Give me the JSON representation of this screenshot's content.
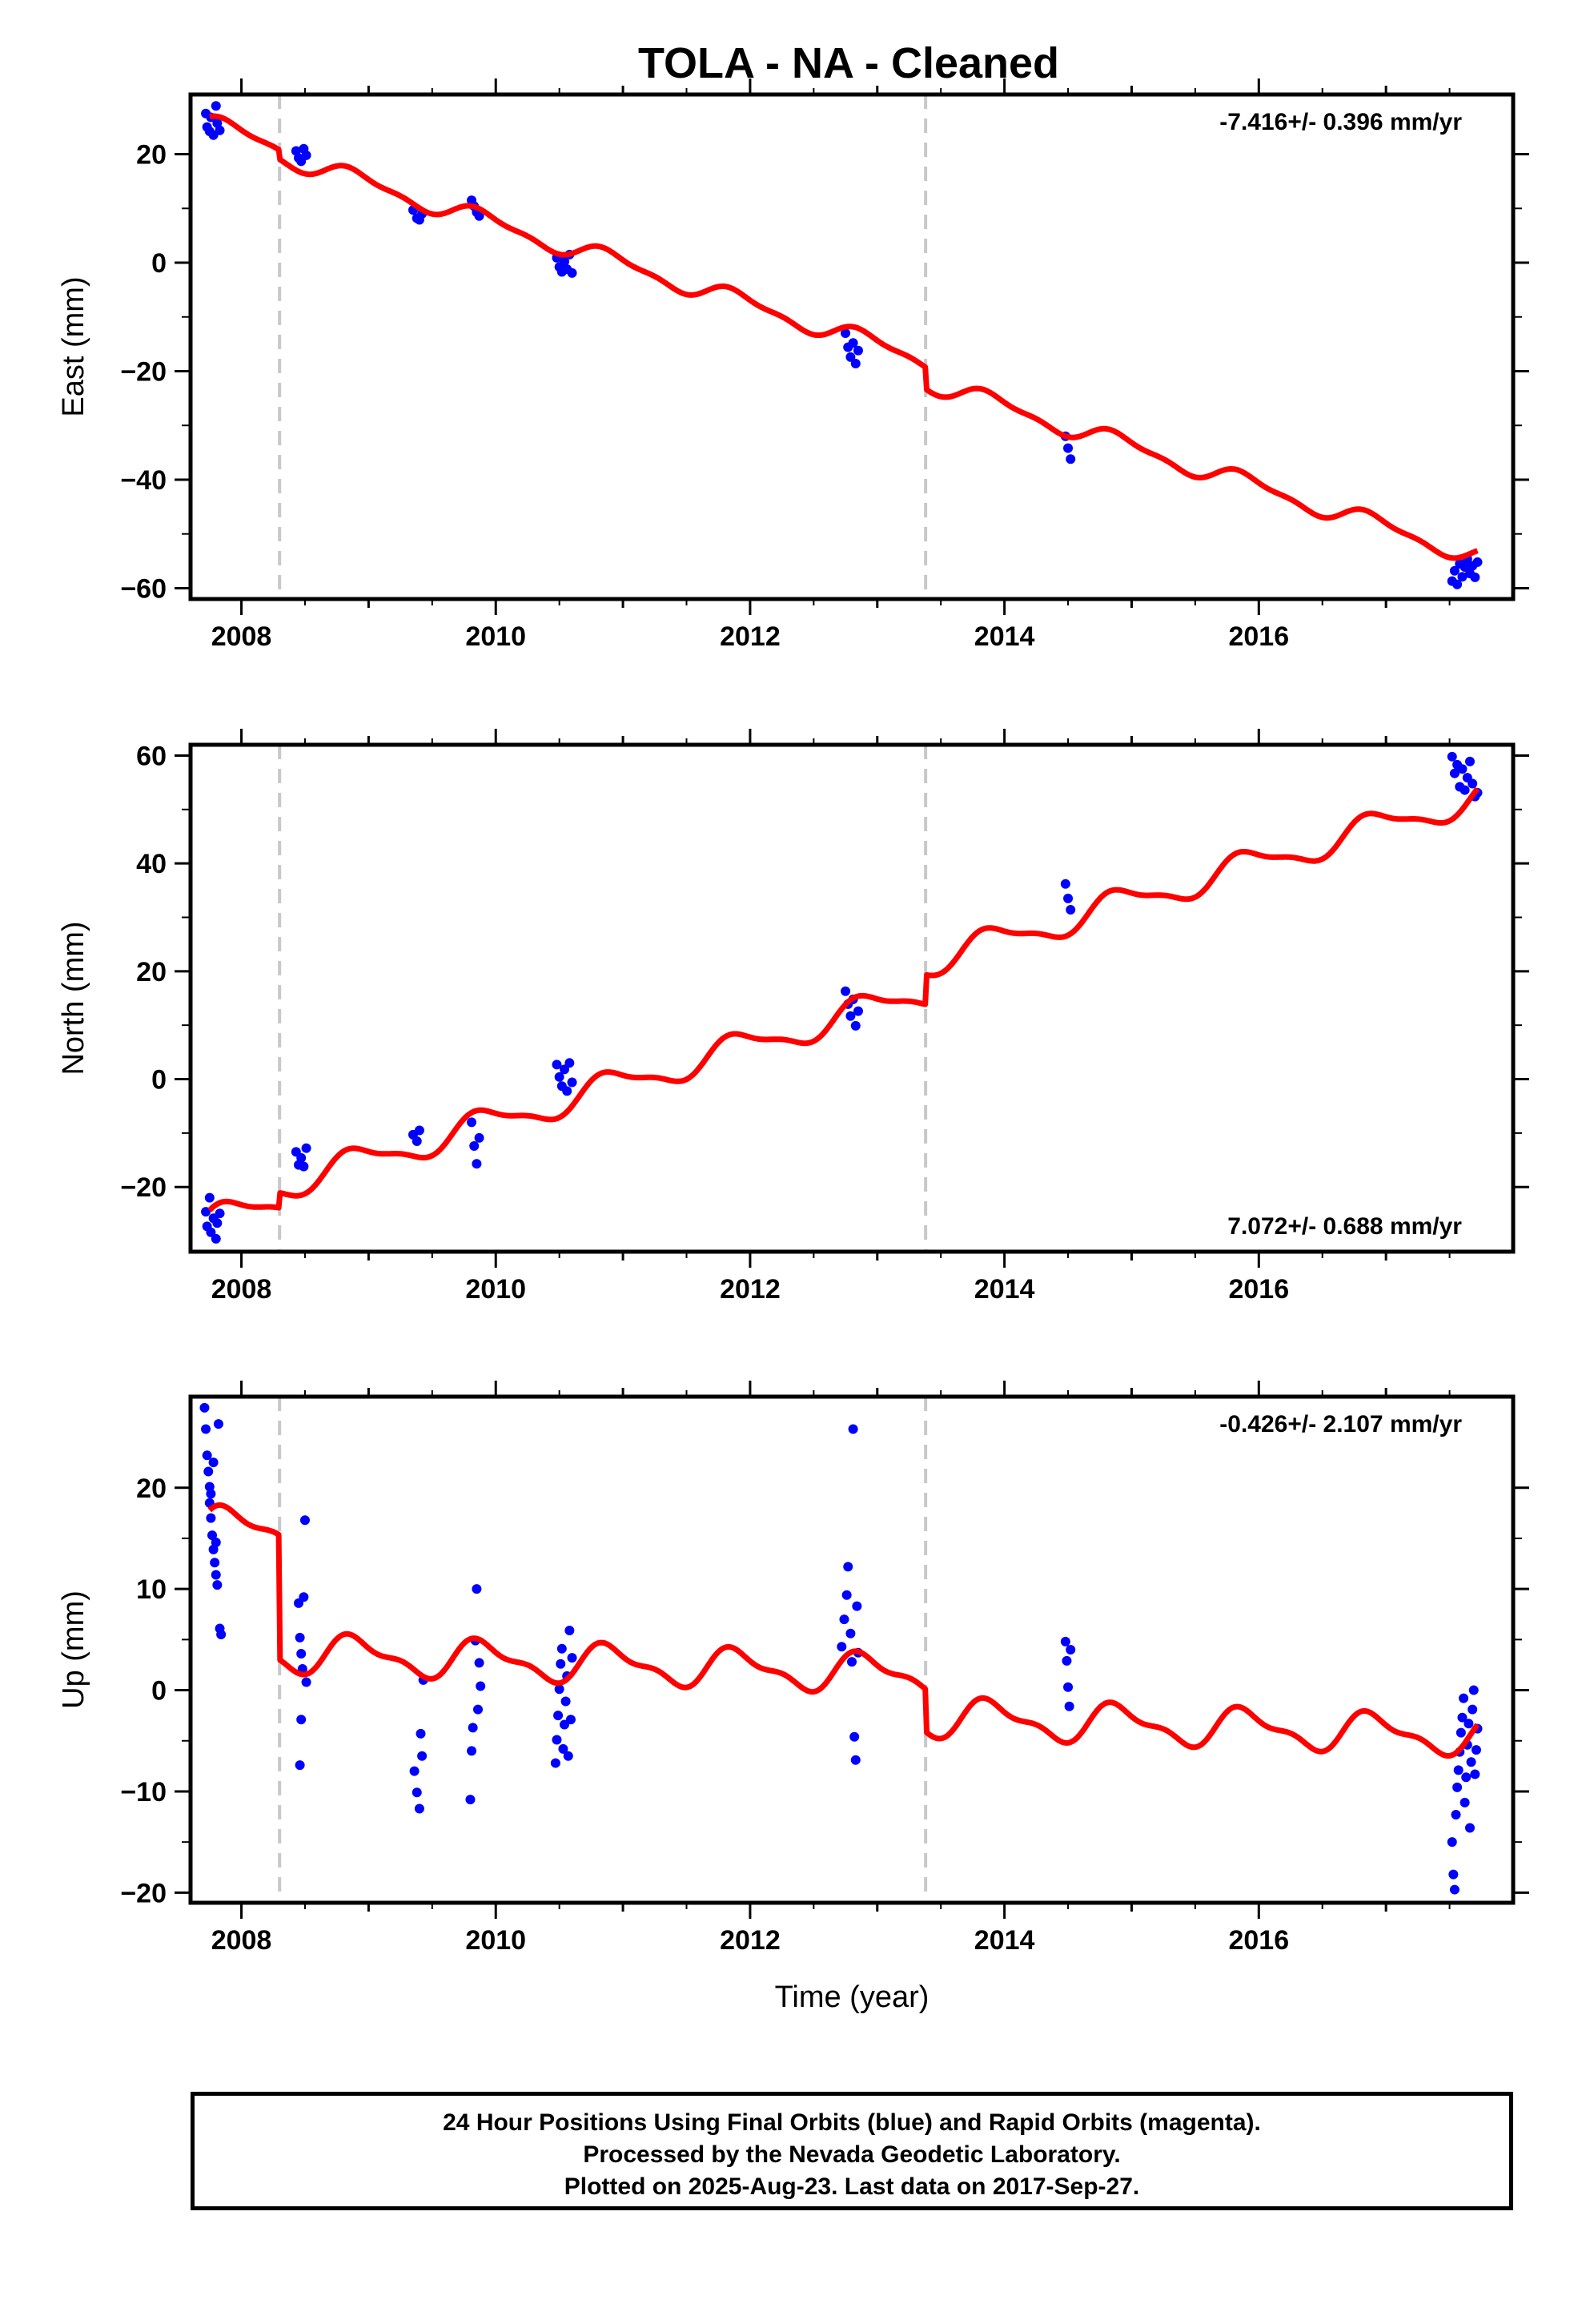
{
  "footer": {
    "lines": [
      "24 Hour Positions Using Final Orbits (blue) and Rapid Orbits (magenta).",
      "Processed by the Nevada Geodetic Laboratory.",
      "Plotted on 2025-Aug-23. Last data on 2017-Sep-27."
    ]
  },
  "colors": {
    "data": "#0000ff",
    "model": "#ff0000",
    "offset": "#c8c8c8",
    "frame": "#000000"
  },
  "chart_data": {
    "type": "scatter",
    "title": "TOLA  - NA - Cleaned",
    "xlabel": "Time (year)",
    "xlim": [
      2007.6,
      2018.0
    ],
    "xticks": [
      2008,
      2010,
      2012,
      2014,
      2016
    ],
    "offsets": [
      2008.3,
      2013.38
    ],
    "panels": [
      {
        "name": "east",
        "ylabel": "East (mm)",
        "ylim": [
          -62,
          31
        ],
        "yticks": [
          -60,
          -40,
          -20,
          0,
          20
        ],
        "rate": "-7.416+/- 0.396 mm/yr",
        "rate_pos": "top-right",
        "points": [
          {
            "x": 2007.72,
            "y": 27.5
          },
          {
            "x": 2007.73,
            "y": 25.0
          },
          {
            "x": 2007.75,
            "y": 24.2
          },
          {
            "x": 2007.76,
            "y": 26.8
          },
          {
            "x": 2007.78,
            "y": 23.5
          },
          {
            "x": 2007.8,
            "y": 28.9
          },
          {
            "x": 2007.81,
            "y": 25.7
          },
          {
            "x": 2007.83,
            "y": 24.4
          },
          {
            "x": 2008.43,
            "y": 20.6
          },
          {
            "x": 2008.45,
            "y": 19.3
          },
          {
            "x": 2008.47,
            "y": 18.7
          },
          {
            "x": 2008.49,
            "y": 21.0
          },
          {
            "x": 2008.51,
            "y": 19.8
          },
          {
            "x": 2009.35,
            "y": 9.7
          },
          {
            "x": 2009.38,
            "y": 8.2
          },
          {
            "x": 2009.4,
            "y": 7.9
          },
          {
            "x": 2009.42,
            "y": 9.0
          },
          {
            "x": 2009.81,
            "y": 11.5
          },
          {
            "x": 2009.83,
            "y": 10.4
          },
          {
            "x": 2009.85,
            "y": 9.3
          },
          {
            "x": 2009.87,
            "y": 8.6
          },
          {
            "x": 2010.48,
            "y": 0.9
          },
          {
            "x": 2010.5,
            "y": -0.8
          },
          {
            "x": 2010.52,
            "y": -1.7
          },
          {
            "x": 2010.54,
            "y": 0.2
          },
          {
            "x": 2010.56,
            "y": -1.2
          },
          {
            "x": 2010.58,
            "y": 1.5
          },
          {
            "x": 2010.6,
            "y": -1.9
          },
          {
            "x": 2012.75,
            "y": -13.0
          },
          {
            "x": 2012.77,
            "y": -15.6
          },
          {
            "x": 2012.79,
            "y": -17.4
          },
          {
            "x": 2012.81,
            "y": -14.8
          },
          {
            "x": 2012.83,
            "y": -18.6
          },
          {
            "x": 2012.85,
            "y": -16.2
          },
          {
            "x": 2014.48,
            "y": -32.0
          },
          {
            "x": 2014.5,
            "y": -34.2
          },
          {
            "x": 2014.52,
            "y": -36.2
          },
          {
            "x": 2017.52,
            "y": -58.7
          },
          {
            "x": 2017.54,
            "y": -56.8
          },
          {
            "x": 2017.56,
            "y": -59.3
          },
          {
            "x": 2017.58,
            "y": -55.5
          },
          {
            "x": 2017.6,
            "y": -57.9
          },
          {
            "x": 2017.62,
            "y": -56.1
          },
          {
            "x": 2017.64,
            "y": -54.6
          },
          {
            "x": 2017.66,
            "y": -57.3
          },
          {
            "x": 2017.68,
            "y": -55.9
          },
          {
            "x": 2017.7,
            "y": -58.0
          },
          {
            "x": 2017.72,
            "y": -55.2
          }
        ],
        "model": {
          "intercept": 25.5,
          "rate": -7.416,
          "amp1": 1.6,
          "amp2": 0.6,
          "steps": [
            -1.7,
            -4.0
          ]
        }
      },
      {
        "name": "north",
        "ylabel": "North (mm)",
        "ylim": [
          -32,
          62
        ],
        "yticks": [
          -20,
          0,
          20,
          40,
          60
        ],
        "rate": "7.072+/- 0.688 mm/yr",
        "rate_pos": "bottom-right",
        "points": [
          {
            "x": 2007.72,
            "y": -24.6
          },
          {
            "x": 2007.73,
            "y": -27.3
          },
          {
            "x": 2007.75,
            "y": -22.0
          },
          {
            "x": 2007.76,
            "y": -28.4
          },
          {
            "x": 2007.78,
            "y": -25.8
          },
          {
            "x": 2007.8,
            "y": -29.6
          },
          {
            "x": 2007.81,
            "y": -26.7
          },
          {
            "x": 2007.83,
            "y": -24.9
          },
          {
            "x": 2008.43,
            "y": -13.5
          },
          {
            "x": 2008.45,
            "y": -15.9
          },
          {
            "x": 2008.47,
            "y": -14.6
          },
          {
            "x": 2008.49,
            "y": -16.2
          },
          {
            "x": 2008.51,
            "y": -12.8
          },
          {
            "x": 2009.35,
            "y": -10.3
          },
          {
            "x": 2009.38,
            "y": -11.5
          },
          {
            "x": 2009.4,
            "y": -9.5
          },
          {
            "x": 2009.81,
            "y": -8.0
          },
          {
            "x": 2009.83,
            "y": -12.4
          },
          {
            "x": 2009.85,
            "y": -15.7
          },
          {
            "x": 2009.87,
            "y": -10.9
          },
          {
            "x": 2010.48,
            "y": 2.7
          },
          {
            "x": 2010.5,
            "y": 0.4
          },
          {
            "x": 2010.52,
            "y": -1.3
          },
          {
            "x": 2010.54,
            "y": 1.8
          },
          {
            "x": 2010.56,
            "y": -2.2
          },
          {
            "x": 2010.58,
            "y": 3.0
          },
          {
            "x": 2010.6,
            "y": -0.6
          },
          {
            "x": 2012.75,
            "y": 16.3
          },
          {
            "x": 2012.77,
            "y": 13.9
          },
          {
            "x": 2012.79,
            "y": 11.7
          },
          {
            "x": 2012.81,
            "y": 14.8
          },
          {
            "x": 2012.83,
            "y": 9.9
          },
          {
            "x": 2012.85,
            "y": 12.6
          },
          {
            "x": 2014.48,
            "y": 36.2
          },
          {
            "x": 2014.5,
            "y": 33.5
          },
          {
            "x": 2014.52,
            "y": 31.4
          },
          {
            "x": 2017.52,
            "y": 59.8
          },
          {
            "x": 2017.54,
            "y": 56.7
          },
          {
            "x": 2017.56,
            "y": 58.3
          },
          {
            "x": 2017.58,
            "y": 54.2
          },
          {
            "x": 2017.6,
            "y": 57.5
          },
          {
            "x": 2017.62,
            "y": 53.6
          },
          {
            "x": 2017.64,
            "y": 55.9
          },
          {
            "x": 2017.66,
            "y": 58.9
          },
          {
            "x": 2017.68,
            "y": 54.8
          },
          {
            "x": 2017.7,
            "y": 52.4
          },
          {
            "x": 2017.72,
            "y": 53.1
          }
        ],
        "model": {
          "intercept": -26.5,
          "rate": 7.072,
          "amp1": 2.6,
          "amp2": 0.8,
          "steps": [
            2.8,
            5.5
          ]
        }
      },
      {
        "name": "up",
        "ylabel": "Up (mm)",
        "ylim": [
          -21,
          29
        ],
        "yticks": [
          -20,
          -10,
          0,
          10,
          20
        ],
        "rate": "-0.426+/- 2.107 mm/yr",
        "rate_pos": "top-right",
        "points": [
          {
            "x": 2007.71,
            "y": 27.9
          },
          {
            "x": 2007.72,
            "y": 25.8
          },
          {
            "x": 2007.73,
            "y": 23.2
          },
          {
            "x": 2007.74,
            "y": 21.6
          },
          {
            "x": 2007.75,
            "y": 20.1
          },
          {
            "x": 2007.75,
            "y": 18.5
          },
          {
            "x": 2007.76,
            "y": 17.0
          },
          {
            "x": 2007.77,
            "y": 15.3
          },
          {
            "x": 2007.78,
            "y": 13.9
          },
          {
            "x": 2007.79,
            "y": 12.6
          },
          {
            "x": 2007.8,
            "y": 11.4
          },
          {
            "x": 2007.81,
            "y": 10.4
          },
          {
            "x": 2007.82,
            "y": 26.3
          },
          {
            "x": 2007.83,
            "y": 6.1
          },
          {
            "x": 2007.84,
            "y": 5.5
          },
          {
            "x": 2007.76,
            "y": 19.4
          },
          {
            "x": 2007.78,
            "y": 22.5
          },
          {
            "x": 2007.8,
            "y": 14.6
          },
          {
            "x": 2008.45,
            "y": 8.6
          },
          {
            "x": 2008.46,
            "y": 5.2
          },
          {
            "x": 2008.47,
            "y": 3.6
          },
          {
            "x": 2008.48,
            "y": 2.1
          },
          {
            "x": 2008.47,
            "y": -2.9
          },
          {
            "x": 2008.46,
            "y": -7.4
          },
          {
            "x": 2008.5,
            "y": 16.8
          },
          {
            "x": 2008.49,
            "y": 9.2
          },
          {
            "x": 2008.51,
            "y": 0.8
          },
          {
            "x": 2009.36,
            "y": -8.0
          },
          {
            "x": 2009.38,
            "y": -10.1
          },
          {
            "x": 2009.4,
            "y": -11.7
          },
          {
            "x": 2009.41,
            "y": -4.3
          },
          {
            "x": 2009.42,
            "y": -6.5
          },
          {
            "x": 2009.43,
            "y": 1.0
          },
          {
            "x": 2009.8,
            "y": -10.8
          },
          {
            "x": 2009.81,
            "y": -6.0
          },
          {
            "x": 2009.82,
            "y": -3.7
          },
          {
            "x": 2009.84,
            "y": 4.9
          },
          {
            "x": 2009.85,
            "y": 10.0
          },
          {
            "x": 2009.86,
            "y": -1.9
          },
          {
            "x": 2009.87,
            "y": 2.7
          },
          {
            "x": 2009.88,
            "y": 0.4
          },
          {
            "x": 2010.47,
            "y": -7.2
          },
          {
            "x": 2010.48,
            "y": -4.9
          },
          {
            "x": 2010.49,
            "y": -2.5
          },
          {
            "x": 2010.5,
            "y": 0.1
          },
          {
            "x": 2010.51,
            "y": 2.6
          },
          {
            "x": 2010.52,
            "y": 4.1
          },
          {
            "x": 2010.53,
            "y": -5.8
          },
          {
            "x": 2010.54,
            "y": -3.4
          },
          {
            "x": 2010.55,
            "y": -1.1
          },
          {
            "x": 2010.56,
            "y": 1.4
          },
          {
            "x": 2010.57,
            "y": -6.5
          },
          {
            "x": 2010.58,
            "y": 5.9
          },
          {
            "x": 2010.59,
            "y": -2.9
          },
          {
            "x": 2010.6,
            "y": 3.2
          },
          {
            "x": 2012.72,
            "y": 4.3
          },
          {
            "x": 2012.74,
            "y": 7.0
          },
          {
            "x": 2012.76,
            "y": 9.4
          },
          {
            "x": 2012.77,
            "y": 12.2
          },
          {
            "x": 2012.79,
            "y": 5.6
          },
          {
            "x": 2012.8,
            "y": 2.8
          },
          {
            "x": 2012.81,
            "y": 25.8
          },
          {
            "x": 2012.82,
            "y": -4.6
          },
          {
            "x": 2012.83,
            "y": -6.9
          },
          {
            "x": 2012.84,
            "y": 8.3
          },
          {
            "x": 2012.85,
            "y": 3.7
          },
          {
            "x": 2014.48,
            "y": 4.8
          },
          {
            "x": 2014.49,
            "y": 2.9
          },
          {
            "x": 2014.5,
            "y": 0.3
          },
          {
            "x": 2014.51,
            "y": -1.6
          },
          {
            "x": 2014.52,
            "y": 4.0
          },
          {
            "x": 2017.52,
            "y": -15.0
          },
          {
            "x": 2017.53,
            "y": -18.2
          },
          {
            "x": 2017.54,
            "y": -19.7
          },
          {
            "x": 2017.55,
            "y": -12.3
          },
          {
            "x": 2017.56,
            "y": -9.6
          },
          {
            "x": 2017.57,
            "y": -7.9
          },
          {
            "x": 2017.58,
            "y": -6.1
          },
          {
            "x": 2017.59,
            "y": -4.2
          },
          {
            "x": 2017.6,
            "y": -2.7
          },
          {
            "x": 2017.61,
            "y": -0.8
          },
          {
            "x": 2017.62,
            "y": -11.1
          },
          {
            "x": 2017.63,
            "y": -8.6
          },
          {
            "x": 2017.64,
            "y": -5.4
          },
          {
            "x": 2017.65,
            "y": -3.3
          },
          {
            "x": 2017.66,
            "y": -13.6
          },
          {
            "x": 2017.67,
            "y": -7.1
          },
          {
            "x": 2017.68,
            "y": -1.9
          },
          {
            "x": 2017.69,
            "y": 0.0
          },
          {
            "x": 2017.7,
            "y": -8.3
          },
          {
            "x": 2017.71,
            "y": -5.9
          },
          {
            "x": 2017.72,
            "y": -3.8
          }
        ],
        "model": {
          "intercept": 16.2,
          "rate": -0.426,
          "amp1": 1.7,
          "amp2": 0.7,
          "steps": [
            -12.3,
            -4.2
          ]
        }
      }
    ]
  }
}
